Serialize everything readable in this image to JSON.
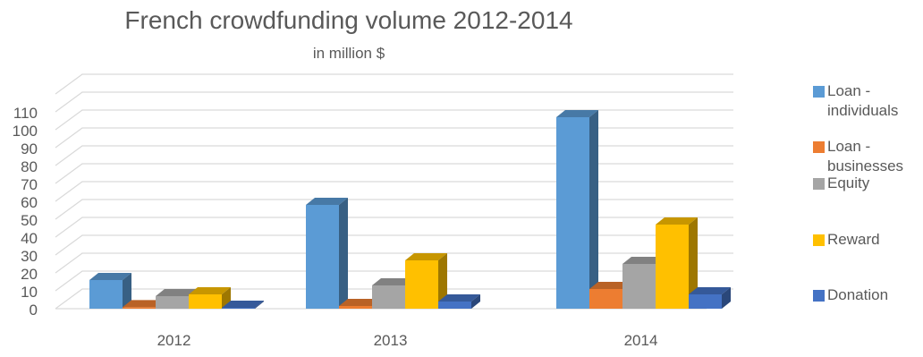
{
  "chart_data": {
    "type": "bar",
    "title": "French crowdfunding volume 2012-2014",
    "subtitle": "in million $",
    "xlabel": "",
    "ylabel": "",
    "categories": [
      "2012",
      "2013",
      "2014"
    ],
    "y_ticks": [
      "0",
      "10",
      "20",
      "30",
      "40",
      "50",
      "60",
      "70",
      "80",
      "90",
      "100",
      "110"
    ],
    "ylim": [
      0,
      120
    ],
    "grid": true,
    "legend_position": "right",
    "series": [
      {
        "name": "Loan - individuals",
        "legend_lines": [
          "Loan -",
          "individuals"
        ],
        "color": "#5B9BD5",
        "values": [
          16,
          58,
          107
        ]
      },
      {
        "name": "Loan - businesses",
        "legend_lines": [
          "Loan -",
          "businesses"
        ],
        "color": "#ED7D31",
        "values": [
          0.8,
          1.5,
          11
        ]
      },
      {
        "name": "Equity",
        "legend_lines": [
          "Equity"
        ],
        "color": "#A5A5A5",
        "values": [
          7,
          13,
          25
        ]
      },
      {
        "name": "Reward",
        "legend_lines": [
          "Reward"
        ],
        "color": "#FFC000",
        "values": [
          8,
          27,
          47
        ]
      },
      {
        "name": "Donation",
        "legend_lines": [
          "Donation"
        ],
        "color": "#4472C4",
        "values": [
          0.5,
          4,
          8
        ]
      }
    ]
  }
}
